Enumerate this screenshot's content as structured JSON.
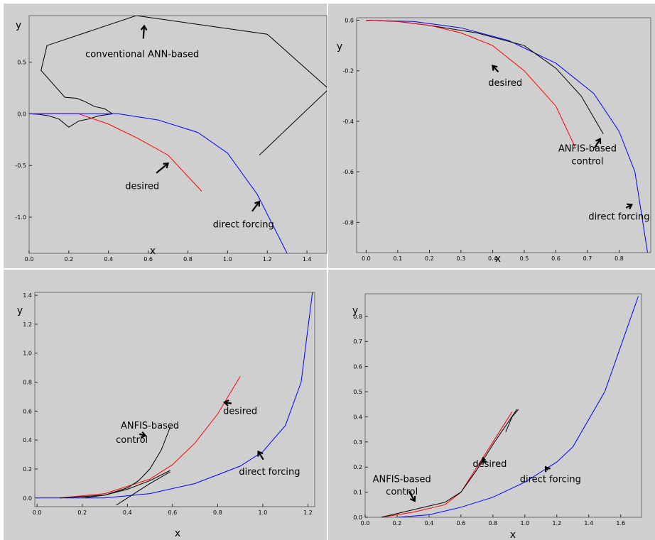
{
  "chart_data": [
    {
      "type": "line",
      "xlabel": "x",
      "ylabel": "y",
      "xlim": [
        0,
        1.5
      ],
      "ylim": [
        -1.35,
        0.95
      ],
      "xticks": [
        "0.0",
        "0.2",
        "0.4",
        "0.6",
        "0.8",
        "1.0",
        "1.2",
        "1.4"
      ],
      "xtick_values": [
        0,
        0.2,
        0.4,
        0.6,
        0.8,
        1.0,
        1.2,
        1.4
      ],
      "yticks": [
        "0.5",
        "0.0",
        "-0.5",
        "-1.0"
      ],
      "ytick_values": [
        0.5,
        0,
        -0.5,
        -1.0
      ],
      "grid": false,
      "series": [
        {
          "color": "#000000",
          "points": [
            [
              0.0,
              0.0
            ],
            [
              0.05,
              -0.005
            ],
            [
              0.1,
              -0.02
            ],
            [
              0.15,
              -0.05
            ],
            [
              0.2,
              -0.13
            ],
            [
              0.25,
              -0.07
            ],
            [
              0.3,
              -0.05
            ],
            [
              0.35,
              -0.02
            ],
            [
              0.42,
              0.0
            ],
            [
              0.38,
              0.05
            ],
            [
              0.33,
              0.07
            ],
            [
              0.28,
              0.12
            ],
            [
              0.24,
              0.15
            ],
            [
              0.18,
              0.16
            ],
            [
              0.06,
              0.42
            ],
            [
              0.09,
              0.66
            ],
            [
              0.54,
              0.95
            ],
            [
              1.2,
              0.77
            ],
            [
              1.51,
              0.24
            ],
            [
              1.16,
              -0.4
            ]
          ]
        },
        {
          "color": "#ff0000",
          "points": [
            [
              0.0,
              0.0
            ],
            [
              0.25,
              0.0
            ],
            [
              0.4,
              -0.1
            ],
            [
              0.55,
              -0.24
            ],
            [
              0.7,
              -0.4
            ],
            [
              0.87,
              -0.75
            ]
          ]
        },
        {
          "color": "#0000ff",
          "points": [
            [
              0.0,
              0.0
            ],
            [
              0.45,
              0.0
            ],
            [
              0.65,
              -0.06
            ],
            [
              0.85,
              -0.18
            ],
            [
              1.0,
              -0.38
            ],
            [
              1.15,
              -0.78
            ],
            [
              1.3,
              -1.35
            ]
          ]
        }
      ],
      "annotations": [
        {
          "text": "conventional ANN-based",
          "x": 0.57,
          "y": 0.55,
          "arrow_to": [
            0.58,
            0.85
          ]
        },
        {
          "text": "desired",
          "x": 0.57,
          "y": -0.73,
          "arrow_to": [
            0.7,
            -0.48
          ]
        },
        {
          "text": "direct forcing",
          "x": 1.08,
          "y": -1.1,
          "arrow_to": [
            1.16,
            -0.85
          ]
        }
      ]
    },
    {
      "type": "line",
      "xlabel": "x",
      "ylabel": "y",
      "xlim": [
        -0.03,
        0.9
      ],
      "ylim": [
        -0.92,
        0.01
      ],
      "xticks": [
        "0.0",
        "0.1",
        "0.2",
        "0.3",
        "0.4",
        "0.5",
        "0.6",
        "0.7",
        "0.8"
      ],
      "xtick_values": [
        0,
        0.1,
        0.2,
        0.3,
        0.4,
        0.5,
        0.6,
        0.7,
        0.8
      ],
      "yticks": [
        "0.0",
        "-0.2",
        "-0.4",
        "-0.6",
        "-0.8"
      ],
      "ytick_values": [
        0,
        -0.2,
        -0.4,
        -0.6,
        -0.8
      ],
      "grid": false,
      "series": [
        {
          "color": "#0000ff",
          "points": [
            [
              0.0,
              0.0
            ],
            [
              0.15,
              -0.005
            ],
            [
              0.3,
              -0.03
            ],
            [
              0.45,
              -0.08
            ],
            [
              0.6,
              -0.17
            ],
            [
              0.72,
              -0.29
            ],
            [
              0.8,
              -0.44
            ],
            [
              0.85,
              -0.6
            ],
            [
              0.89,
              -0.92
            ]
          ]
        },
        {
          "color": "#000000",
          "points": [
            [
              0.0,
              0.0
            ],
            [
              0.1,
              -0.005
            ],
            [
              0.2,
              -0.02
            ],
            [
              0.35,
              -0.05
            ],
            [
              0.5,
              -0.1
            ],
            [
              0.6,
              -0.19
            ],
            [
              0.68,
              -0.3
            ],
            [
              0.75,
              -0.45
            ]
          ]
        },
        {
          "color": "#ff0000",
          "points": [
            [
              0.0,
              0.0
            ],
            [
              0.1,
              -0.005
            ],
            [
              0.2,
              -0.02
            ],
            [
              0.3,
              -0.05
            ],
            [
              0.4,
              -0.1
            ],
            [
              0.5,
              -0.2
            ],
            [
              0.6,
              -0.34
            ],
            [
              0.66,
              -0.5
            ]
          ]
        }
      ],
      "annotations": [
        {
          "text": "desired",
          "x": 0.44,
          "y": -0.26,
          "arrow_to": [
            0.4,
            -0.18
          ]
        },
        {
          "text": "ANFIS-based",
          "x": 0.7,
          "y": -0.52
        },
        {
          "text": "control",
          "x": 0.7,
          "y": -0.57,
          "arrow_to": [
            0.74,
            -0.47
          ]
        },
        {
          "text": "direct forcing",
          "x": 0.8,
          "y": -0.79,
          "arrow_to": [
            0.84,
            -0.73
          ]
        }
      ]
    },
    {
      "type": "line",
      "xlabel": "x",
      "ylabel": "y",
      "xlim": [
        -0.01,
        1.23
      ],
      "ylim": [
        -0.06,
        1.42
      ],
      "xticks": [
        "0.0",
        "0.2",
        "0.4",
        "0.6",
        "0.8",
        "1.0",
        "1.2"
      ],
      "xtick_values": [
        0,
        0.2,
        0.4,
        0.6,
        0.8,
        1.0,
        1.2
      ],
      "yticks": [
        "0.0",
        "0.2",
        "0.4",
        "0.6",
        "0.8",
        "1.0",
        "1.2",
        "1.4"
      ],
      "ytick_values": [
        0,
        0.2,
        0.4,
        0.6,
        0.8,
        1.0,
        1.2,
        1.4
      ],
      "grid": false,
      "series": [
        {
          "color": "#0000ff",
          "points": [
            [
              0.0,
              0.0
            ],
            [
              0.3,
              0.0
            ],
            [
              0.5,
              0.03
            ],
            [
              0.7,
              0.1
            ],
            [
              0.9,
              0.22
            ],
            [
              1.0,
              0.32
            ],
            [
              1.1,
              0.5
            ],
            [
              1.17,
              0.8
            ],
            [
              1.22,
              1.42
            ]
          ]
        },
        {
          "color": "#ff0000",
          "points": [
            [
              0.1,
              0.0
            ],
            [
              0.3,
              0.03
            ],
            [
              0.5,
              0.13
            ],
            [
              0.6,
              0.23
            ],
            [
              0.7,
              0.38
            ],
            [
              0.8,
              0.58
            ],
            [
              0.9,
              0.84
            ]
          ]
        },
        {
          "color": "#000000",
          "points": [
            [
              0.1,
              0.0
            ],
            [
              0.3,
              0.02
            ],
            [
              0.4,
              0.07
            ],
            [
              0.45,
              0.12
            ],
            [
              0.5,
              0.2
            ],
            [
              0.55,
              0.33
            ],
            [
              0.59,
              0.49
            ]
          ]
        },
        {
          "color": "#000000",
          "points": [
            [
              0.2,
              0.0
            ],
            [
              0.3,
              0.02
            ],
            [
              0.4,
              0.06
            ],
            [
              0.5,
              0.12
            ],
            [
              0.59,
              0.19
            ]
          ]
        },
        {
          "color": "#000000",
          "points": [
            [
              0.35,
              -0.05
            ],
            [
              0.4,
              0.0
            ],
            [
              0.45,
              0.05
            ],
            [
              0.5,
              0.1
            ],
            [
              0.59,
              0.18
            ]
          ]
        }
      ],
      "annotations": [
        {
          "text": "ANFIS-based",
          "x": 0.5,
          "y": 0.48
        },
        {
          "text": "control",
          "x": 0.42,
          "y": 0.38,
          "arrow_to": [
            0.48,
            0.43
          ]
        },
        {
          "text": "desired",
          "x": 0.9,
          "y": 0.58,
          "arrow_to": [
            0.83,
            0.66
          ]
        },
        {
          "text": "direct forcing",
          "x": 1.03,
          "y": 0.16,
          "arrow_to": [
            0.98,
            0.32
          ]
        }
      ]
    },
    {
      "type": "line",
      "xlabel": "x",
      "ylabel": "y",
      "xlim": [
        0,
        1.73
      ],
      "ylim": [
        0,
        0.89
      ],
      "xticks": [
        "0.0",
        "0.2",
        "0.4",
        "0.6",
        "0.8",
        "1.0",
        "1.2",
        "1.4",
        "1.6"
      ],
      "xtick_values": [
        0,
        0.2,
        0.4,
        0.6,
        0.8,
        1.0,
        1.2,
        1.4,
        1.6
      ],
      "yticks": [
        "0.0",
        "0.1",
        "0.2",
        "0.3",
        "0.4",
        "0.5",
        "0.6",
        "0.7",
        "0.8"
      ],
      "ytick_values": [
        0,
        0.1,
        0.2,
        0.3,
        0.4,
        0.5,
        0.6,
        0.7,
        0.8
      ],
      "grid": false,
      "series": [
        {
          "color": "#0000ff",
          "points": [
            [
              0.2,
              0.0
            ],
            [
              0.4,
              0.01
            ],
            [
              0.6,
              0.04
            ],
            [
              0.8,
              0.08
            ],
            [
              1.0,
              0.14
            ],
            [
              1.2,
              0.22
            ],
            [
              1.3,
              0.28
            ],
            [
              1.5,
              0.5
            ],
            [
              1.71,
              0.88
            ]
          ]
        },
        {
          "color": "#ff0000",
          "points": [
            [
              0.1,
              0.0
            ],
            [
              0.3,
              0.02
            ],
            [
              0.5,
              0.05
            ],
            [
              0.6,
              0.1
            ],
            [
              0.7,
              0.2
            ],
            [
              0.8,
              0.3
            ],
            [
              0.92,
              0.42
            ]
          ]
        },
        {
          "color": "#000000",
          "points": [
            [
              0.1,
              0.0
            ],
            [
              0.3,
              0.03
            ],
            [
              0.5,
              0.06
            ],
            [
              0.6,
              0.1
            ],
            [
              0.7,
              0.19
            ],
            [
              0.8,
              0.29
            ],
            [
              0.95,
              0.43
            ]
          ]
        },
        {
          "color": "#000000",
          "points": [
            [
              0.88,
              0.34
            ],
            [
              0.92,
              0.4
            ],
            [
              0.96,
              0.43
            ]
          ]
        }
      ],
      "annotations": [
        {
          "text": "ANFIS-based",
          "x": 0.23,
          "y": 0.14
        },
        {
          "text": "control",
          "x": 0.23,
          "y": 0.09,
          "arrow_to": [
            0.31,
            0.065
          ]
        },
        {
          "text": "desired",
          "x": 0.78,
          "y": 0.2,
          "arrow_to": [
            0.73,
            0.22
          ]
        },
        {
          "text": "direct forcing",
          "x": 1.16,
          "y": 0.14,
          "arrow_to": [
            1.13,
            0.2
          ]
        }
      ]
    }
  ]
}
